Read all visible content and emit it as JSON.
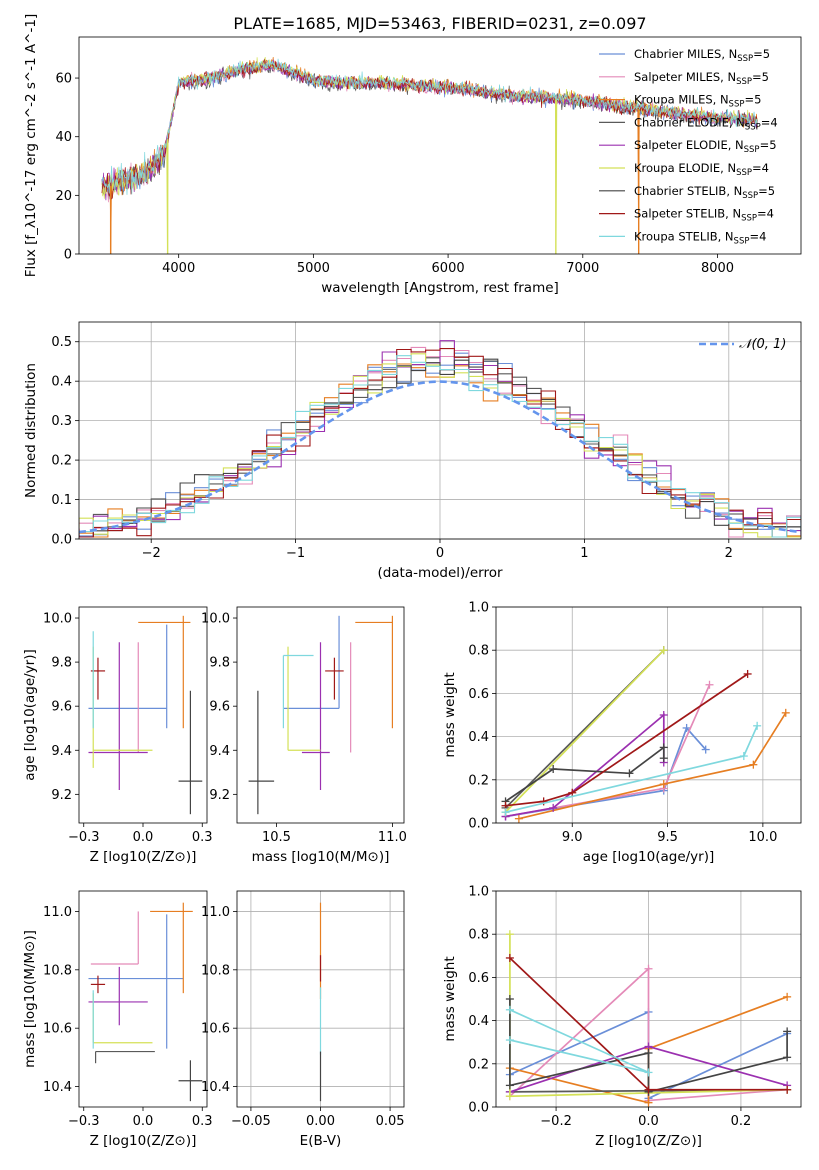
{
  "title": "PLATE=1685, MJD=53463, FIBERID=0231, z=0.097",
  "colors": [
    "#6a8fd8",
    "#e48ab8",
    "#e67e22",
    "#5a5a5a",
    "#9b30b0",
    "#d4e157",
    "#444444",
    "#a01818",
    "#7fd8de"
  ],
  "chart_data": [
    {
      "id": "spectrum",
      "type": "line",
      "xlabel": "wavelength [Angstrom, rest frame]",
      "ylabel": "Flux [f_λ10^-17 erg cm^-2 s^-1 A^-1]",
      "xlim": [
        3260,
        8620
      ],
      "ylim": [
        0,
        74
      ],
      "xticks": [
        4000,
        5000,
        6000,
        7000,
        8000
      ],
      "yticks": [
        0,
        20,
        40,
        60
      ],
      "grid": false,
      "legend_position": "top-right",
      "continuum": [
        [
          3430,
          22
        ],
        [
          3600,
          25
        ],
        [
          3760,
          27
        ],
        [
          3900,
          35
        ],
        [
          4000,
          58
        ],
        [
          4200,
          59
        ],
        [
          4500,
          63
        ],
        [
          4700,
          64
        ],
        [
          5000,
          59
        ],
        [
          5200,
          58
        ],
        [
          5500,
          58
        ],
        [
          5800,
          57
        ],
        [
          6100,
          56
        ],
        [
          6400,
          54
        ],
        [
          6700,
          53
        ],
        [
          7000,
          52
        ],
        [
          7300,
          50
        ],
        [
          7600,
          48
        ],
        [
          8000,
          46
        ],
        [
          8300,
          45
        ]
      ],
      "dips": [
        {
          "series": 2,
          "at": 3495,
          "to": 0
        },
        {
          "series": 5,
          "at": 3918,
          "to": 0
        },
        {
          "series": 5,
          "at": 6800,
          "to": 0
        },
        {
          "series": 2,
          "at": 7415,
          "to": 0
        }
      ],
      "series": [
        {
          "name": "Chabrier MILES",
          "nssp": "5"
        },
        {
          "name": "Salpeter MILES",
          "nssp": "5"
        },
        {
          "name": "Kroupa MILES",
          "nssp": "5"
        },
        {
          "name": "Chabrier ELODIE",
          "nssp": "4"
        },
        {
          "name": "Salpeter ELODIE",
          "nssp": "5"
        },
        {
          "name": "Kroupa ELODIE",
          "nssp": "4"
        },
        {
          "name": "Chabrier STELIB",
          "nssp": "5"
        },
        {
          "name": "Salpeter STELIB",
          "nssp": "4"
        },
        {
          "name": "Kroupa STELIB",
          "nssp": "4"
        }
      ]
    },
    {
      "id": "residuals",
      "type": "histogram",
      "xlabel": "(data-model)/error",
      "ylabel": "Normed distribution",
      "xlim": [
        -2.5,
        2.5
      ],
      "ylim": [
        0,
        0.55
      ],
      "xticks": [
        -2,
        -1,
        0,
        1,
        2
      ],
      "yticks": [
        0.0,
        0.1,
        0.2,
        0.3,
        0.4,
        0.5
      ],
      "grid": true,
      "legend_position": "top-right",
      "reference_curve": "𝒩(0, 1)",
      "bin_width": 0.1
    },
    {
      "id": "age-vs-Z",
      "type": "errorbar",
      "xlabel": "Z [log10(Z/Z⊙)]",
      "ylabel": "age  [log10(age/yr)]",
      "xlim": [
        -0.27,
        0.27
      ],
      "ylim": [
        9.07,
        10.05
      ],
      "xticks": [
        -0.25,
        0.0,
        0.25
      ],
      "yticks": [
        9.2,
        9.4,
        9.6,
        9.8,
        10.0
      ],
      "grid": false,
      "points": [
        {
          "series": 0,
          "x": 0.1,
          "xerr": [
            0.33,
            0.0
          ],
          "y": 9.59,
          "yerr": [
            0.09,
            0.38
          ]
        },
        {
          "series": 1,
          "x": -0.02,
          "xerr": [
            0.0,
            0.0
          ],
          "y": 9.59,
          "yerr": [
            0.2,
            0.3
          ]
        },
        {
          "series": 2,
          "x": 0.17,
          "xerr": [
            0.19,
            0.03
          ],
          "y": 9.98,
          "yerr": [
            0.48,
            0.03
          ]
        },
        {
          "series": 3,
          "x": -0.2,
          "xerr": [
            0.0,
            0.0
          ],
          "y": 9.4,
          "yerr": [
            0.0,
            0.0
          ]
        },
        {
          "series": 4,
          "x": -0.1,
          "xerr": [
            0.13,
            0.12
          ],
          "y": 9.39,
          "yerr": [
            0.17,
            0.5
          ]
        },
        {
          "series": 5,
          "x": -0.21,
          "xerr": [
            0.0,
            0.25
          ],
          "y": 9.4,
          "yerr": [
            0.08,
            0.47
          ]
        },
        {
          "series": 6,
          "x": 0.2,
          "xerr": [
            0.05,
            0.05
          ],
          "y": 9.26,
          "yerr": [
            0.15,
            0.41
          ]
        },
        {
          "series": 7,
          "x": -0.19,
          "xerr": [
            0.03,
            0.03
          ],
          "y": 9.76,
          "yerr": [
            0.13,
            0.06
          ]
        },
        {
          "series": 8,
          "x": -0.21,
          "xerr": [
            0.0,
            0.0
          ],
          "y": 9.83,
          "yerr": [
            0.33,
            0.11
          ]
        }
      ]
    },
    {
      "id": "age-vs-mass",
      "type": "errorbar",
      "xlabel": "mass [log10(M/M⊙)]",
      "ylabel": "",
      "xlim": [
        10.33,
        11.05
      ],
      "ylim": [
        9.07,
        10.05
      ],
      "xticks": [
        10.5,
        11.0
      ],
      "yticks": [
        9.2,
        9.4,
        9.6,
        9.8,
        10.0
      ],
      "grid": false,
      "points": [
        {
          "series": 0,
          "x": 10.77,
          "xerr": [
            0.24,
            0.0
          ],
          "y": 9.59,
          "yerr": [
            0.0,
            0.42
          ]
        },
        {
          "series": 1,
          "x": 10.82,
          "xerr": [
            0.0,
            0.0
          ],
          "y": 9.59,
          "yerr": [
            0.2,
            0.3
          ]
        },
        {
          "series": 2,
          "x": 11.0,
          "xerr": [
            0.16,
            0.0
          ],
          "y": 9.98,
          "yerr": [
            0.48,
            0.03
          ]
        },
        {
          "series": 3,
          "x": 10.52,
          "xerr": [
            0.0,
            0.0
          ],
          "y": 9.4,
          "yerr": [
            0.0,
            0.0
          ]
        },
        {
          "series": 4,
          "x": 10.69,
          "xerr": [
            0.08,
            0.04
          ],
          "y": 9.39,
          "yerr": [
            0.17,
            0.5
          ]
        },
        {
          "series": 5,
          "x": 10.55,
          "xerr": [
            0.0,
            0.14
          ],
          "y": 9.4,
          "yerr": [
            0.0,
            0.47
          ]
        },
        {
          "series": 6,
          "x": 10.42,
          "xerr": [
            0.04,
            0.07
          ],
          "y": 9.26,
          "yerr": [
            0.15,
            0.41
          ]
        },
        {
          "series": 7,
          "x": 10.75,
          "xerr": [
            0.04,
            0.04
          ],
          "y": 9.76,
          "yerr": [
            0.13,
            0.06
          ]
        },
        {
          "series": 8,
          "x": 10.53,
          "xerr": [
            0.0,
            0.13
          ],
          "y": 9.83,
          "yerr": [
            0.33,
            0.0
          ]
        }
      ]
    },
    {
      "id": "weight-vs-age",
      "type": "line",
      "xlabel": "age  [log10(age/yr)]",
      "ylabel": "mass weight",
      "xlim": [
        8.6,
        10.2
      ],
      "ylim": [
        0,
        1
      ],
      "xticks": [
        9.0,
        9.5,
        10.0
      ],
      "yticks": [
        0.0,
        0.2,
        0.4,
        0.6,
        0.8,
        1.0
      ],
      "grid": true,
      "series": [
        {
          "series": 0,
          "points": [
            [
              8.65,
              0.03
            ],
            [
              9.48,
              0.15
            ],
            [
              9.6,
              0.44
            ],
            [
              9.7,
              0.34
            ]
          ]
        },
        {
          "series": 1,
          "points": [
            [
              8.65,
              0.03
            ],
            [
              9.48,
              0.16
            ],
            [
              9.72,
              0.64
            ]
          ]
        },
        {
          "series": 2,
          "points": [
            [
              8.72,
              0.02
            ],
            [
              9.48,
              0.18
            ],
            [
              9.95,
              0.27
            ],
            [
              10.12,
              0.51
            ]
          ]
        },
        {
          "series": 3,
          "points": [
            [
              8.65,
              0.07
            ],
            [
              9.48,
              0.8
            ]
          ]
        },
        {
          "series": 4,
          "points": [
            [
              8.65,
              0.03
            ],
            [
              8.9,
              0.07
            ],
            [
              9.48,
              0.5
            ],
            [
              9.48,
              0.28
            ]
          ]
        },
        {
          "series": 5,
          "points": [
            [
              8.65,
              0.05
            ],
            [
              9.48,
              0.8
            ]
          ]
        },
        {
          "series": 6,
          "points": [
            [
              8.65,
              0.1
            ],
            [
              8.9,
              0.25
            ],
            [
              9.3,
              0.23
            ],
            [
              9.48,
              0.35
            ],
            [
              9.48,
              0.3
            ]
          ]
        },
        {
          "series": 7,
          "points": [
            [
              8.65,
              0.08
            ],
            [
              8.85,
              0.1
            ],
            [
              9.0,
              0.14
            ],
            [
              9.92,
              0.69
            ]
          ]
        },
        {
          "series": 8,
          "points": [
            [
              8.65,
              0.05
            ],
            [
              9.9,
              0.31
            ],
            [
              9.97,
              0.45
            ]
          ]
        }
      ]
    },
    {
      "id": "mass-vs-Z",
      "type": "errorbar",
      "xlabel": "Z [log10(Z/Z⊙)]",
      "ylabel": "mass [log10(M/M⊙)]",
      "xlim": [
        -0.27,
        0.27
      ],
      "ylim": [
        10.33,
        11.07
      ],
      "xticks": [
        -0.25,
        0.0,
        0.25
      ],
      "yticks": [
        10.4,
        10.6,
        10.8,
        11.0
      ],
      "grid": false,
      "points": [
        {
          "series": 0,
          "x": 0.1,
          "xerr": [
            0.33,
            0.07
          ],
          "y": 10.77,
          "yerr": [
            0.24,
            0.22
          ]
        },
        {
          "series": 1,
          "x": -0.02,
          "xerr": [
            0.2,
            0.0
          ],
          "y": 10.82,
          "yerr": [
            0.0,
            0.18
          ]
        },
        {
          "series": 2,
          "x": 0.17,
          "xerr": [
            0.14,
            0.04
          ],
          "y": 11.0,
          "yerr": [
            0.28,
            0.03
          ]
        },
        {
          "series": 3,
          "x": -0.2,
          "xerr": [
            0.0,
            0.25
          ],
          "y": 10.52,
          "yerr": [
            0.04,
            0.0
          ]
        },
        {
          "series": 4,
          "x": -0.1,
          "xerr": [
            0.13,
            0.12
          ],
          "y": 10.69,
          "yerr": [
            0.08,
            0.12
          ]
        },
        {
          "series": 5,
          "x": -0.21,
          "xerr": [
            0.0,
            0.25
          ],
          "y": 10.55,
          "yerr": [
            0.0,
            0.17
          ]
        },
        {
          "series": 6,
          "x": 0.2,
          "xerr": [
            0.05,
            0.05
          ],
          "y": 10.42,
          "yerr": [
            0.07,
            0.07
          ]
        },
        {
          "series": 7,
          "x": -0.19,
          "xerr": [
            0.03,
            0.03
          ],
          "y": 10.75,
          "yerr": [
            0.03,
            0.03
          ]
        },
        {
          "series": 8,
          "x": -0.21,
          "xerr": [
            0.0,
            0.0
          ],
          "y": 10.53,
          "yerr": [
            0.0,
            0.2
          ]
        }
      ]
    },
    {
      "id": "mass-vs-ebv",
      "type": "errorbar",
      "xlabel": "E(B-V)",
      "ylabel": "",
      "xlim": [
        -0.06,
        0.06
      ],
      "ylim": [
        10.33,
        11.07
      ],
      "xticks": [
        -0.05,
        0.0,
        0.05
      ],
      "yticks": [
        10.4,
        10.6,
        10.8,
        11.0
      ],
      "grid": true,
      "points": [
        {
          "series": 2,
          "x": 0.0,
          "xerr": [
            0.0,
            0.0
          ],
          "y": 10.75,
          "yerr": [
            0.05,
            0.28
          ]
        },
        {
          "series": 7,
          "x": 0.0,
          "xerr": [
            0.0,
            0.0
          ],
          "y": 10.8,
          "yerr": [
            0.04,
            0.05
          ]
        },
        {
          "series": 8,
          "x": 0.0,
          "xerr": [
            0.0,
            0.0
          ],
          "y": 10.63,
          "yerr": [
            0.12,
            0.11
          ]
        },
        {
          "series": 6,
          "x": 0.0,
          "xerr": [
            0.0,
            0.0
          ],
          "y": 10.45,
          "yerr": [
            0.1,
            0.07
          ]
        }
      ]
    },
    {
      "id": "weight-vs-Z",
      "type": "line",
      "xlabel": "Z [log10(Z/Z⊙)]",
      "ylabel": "mass weight",
      "xlim": [
        -0.33,
        0.33
      ],
      "ylim": [
        0,
        1
      ],
      "xticks": [
        -0.2,
        0.0,
        0.2
      ],
      "yticks": [
        0.0,
        0.2,
        0.4,
        0.6,
        0.8,
        1.0
      ],
      "grid": true,
      "series": [
        {
          "series": 0,
          "points": [
            [
              -0.3,
              0.15
            ],
            [
              0.0,
              0.44
            ],
            [
              0.0,
              0.04
            ],
            [
              0.3,
              0.34
            ]
          ]
        },
        {
          "series": 1,
          "points": [
            [
              -0.3,
              0.05
            ],
            [
              0.0,
              0.64
            ],
            [
              0.0,
              0.03
            ],
            [
              0.3,
              0.08
            ]
          ]
        },
        {
          "series": 2,
          "points": [
            [
              -0.3,
              0.18
            ],
            [
              0.0,
              0.02
            ],
            [
              0.0,
              0.27
            ],
            [
              0.3,
              0.51
            ]
          ]
        },
        {
          "series": 3,
          "points": [
            [
              -0.3,
              0.07
            ],
            [
              0.3,
              0.08
            ]
          ]
        },
        {
          "series": 4,
          "points": [
            [
              -0.3,
              0.07
            ],
            [
              0.0,
              0.28
            ],
            [
              0.3,
              0.1
            ]
          ]
        },
        {
          "series": 5,
          "points": [
            [
              -0.3,
              0.8
            ],
            [
              -0.3,
              0.05
            ],
            [
              0.3,
              0.08
            ]
          ]
        },
        {
          "series": 6,
          "points": [
            [
              -0.3,
              0.5
            ],
            [
              -0.3,
              0.1
            ],
            [
              0.0,
              0.25
            ],
            [
              0.0,
              0.07
            ],
            [
              0.3,
              0.23
            ],
            [
              0.3,
              0.35
            ]
          ]
        },
        {
          "series": 7,
          "points": [
            [
              -0.3,
              0.69
            ],
            [
              0.0,
              0.08
            ],
            [
              0.3,
              0.08
            ]
          ]
        },
        {
          "series": 8,
          "points": [
            [
              -0.3,
              0.31
            ],
            [
              0.0,
              0.16
            ],
            [
              -0.3,
              0.45
            ]
          ]
        }
      ]
    }
  ]
}
